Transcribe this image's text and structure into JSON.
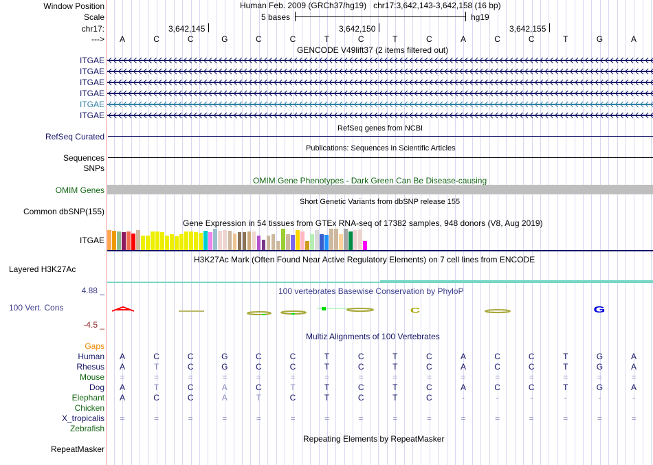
{
  "header": {
    "window_position_label": "Window Position",
    "window_position_text": "Human Feb. 2009 (GRCh37/hg19)   chr17:3,642,143-3,642,158 (16 bp)",
    "scale_label": "Scale",
    "scale_text": "5 bases",
    "scale_assembly": "hg19",
    "chrom_label": "chr17:",
    "strand_label": "--->",
    "coord_ticks": [
      "3,642,145",
      "3,642,150",
      "3,642,155"
    ],
    "bases": [
      "A",
      "C",
      "C",
      "G",
      "C",
      "C",
      "T",
      "C",
      "T",
      "C",
      "A",
      "C",
      "C",
      "T",
      "G",
      "A"
    ]
  },
  "tracks": {
    "gencode": {
      "title": "GENCODE V49lift37 (2 items filtered out)",
      "items": [
        {
          "label": "ITGAE",
          "color": "#141466"
        },
        {
          "label": "ITGAE",
          "color": "#141466"
        },
        {
          "label": "ITGAE",
          "color": "#141466"
        },
        {
          "label": "ITGAE",
          "color": "#141466"
        },
        {
          "label": "ITGAE",
          "color": "#2f7fa6"
        },
        {
          "label": "ITGAE",
          "color": "#141466"
        }
      ],
      "strand": "minus"
    },
    "refseq": {
      "label": "RefSeq Curated",
      "title": "RefSeq genes from NCBI"
    },
    "publications": {
      "label": "Sequences",
      "title": "Publications: Sequences in Scientific Articles"
    },
    "snps_label": "SNPs",
    "omim": {
      "label": "OMIM Genes",
      "title": "OMIM Gene Phenotypes - Dark Green Can Be Disease-causing"
    },
    "dbsnp": {
      "label": "Common dbSNP(155)",
      "title": "Short Genetic Variants from dbSNP release 155"
    },
    "gtex": {
      "label": "ITGAE",
      "title": "Gene Expression in 54 tissues from GTEx RNA-seq of 17382 samples, 948 donors (V8, Aug 2019)",
      "bars": [
        {
          "color": "#ffa54f",
          "value": 0.93
        },
        {
          "color": "#ee9a00",
          "value": 0.9
        },
        {
          "color": "#8fbc8f",
          "value": 0.87
        },
        {
          "color": "#8b1c62",
          "value": 0.83
        },
        {
          "color": "#ee6a50",
          "value": 0.87
        },
        {
          "color": "#ff0000",
          "value": 0.78
        },
        {
          "color": "#cdb79e",
          "value": 0.93
        },
        {
          "color": "#eeee00",
          "value": 0.68
        },
        {
          "color": "#eeee00",
          "value": 0.68
        },
        {
          "color": "#eeee00",
          "value": 0.88
        },
        {
          "color": "#eeee00",
          "value": 0.86
        },
        {
          "color": "#eeee00",
          "value": 0.83
        },
        {
          "color": "#eeee00",
          "value": 0.68
        },
        {
          "color": "#eeee00",
          "value": 0.75
        },
        {
          "color": "#eeee00",
          "value": 0.64
        },
        {
          "color": "#eeee00",
          "value": 0.75
        },
        {
          "color": "#eeee00",
          "value": 0.86
        },
        {
          "color": "#eeee00",
          "value": 0.86
        },
        {
          "color": "#eeee00",
          "value": 0.83
        },
        {
          "color": "#eeee00",
          "value": 0.8
        },
        {
          "color": "#00cdcd",
          "value": 0.9
        },
        {
          "color": "#ee82ee",
          "value": 0.83
        },
        {
          "color": "#9ac0cd",
          "value": 1.0
        },
        {
          "color": "#eed5d2",
          "value": 0.9
        },
        {
          "color": "#eed5d2",
          "value": 0.93
        },
        {
          "color": "#cdb79e",
          "value": 0.9
        },
        {
          "color": "#eec591",
          "value": 0.78
        },
        {
          "color": "#8b7355",
          "value": 0.83
        },
        {
          "color": "#8b7355",
          "value": 0.83
        },
        {
          "color": "#cdaa7d",
          "value": 0.86
        },
        {
          "color": "#eed5d2",
          "value": 0.87
        },
        {
          "color": "#b452cd",
          "value": 0.68
        },
        {
          "color": "#7a378b",
          "value": 0.47
        },
        {
          "color": "#cdb79e",
          "value": 0.67
        },
        {
          "color": "#cdb79e",
          "value": 0.73
        },
        {
          "color": "#cdb79e",
          "value": 0.43
        },
        {
          "color": "#9acd32",
          "value": 1.0
        },
        {
          "color": "#cdb79e",
          "value": 0.75
        },
        {
          "color": "#7b68ee",
          "value": 0.7
        },
        {
          "color": "#ffd700",
          "value": 0.93
        },
        {
          "color": "#ffb6c1",
          "value": 0.88
        },
        {
          "color": "#cd9b1d",
          "value": 0.43
        },
        {
          "color": "#b4eeb4",
          "value": 0.75
        },
        {
          "color": "#d9d9d9",
          "value": 0.93
        },
        {
          "color": "#3a5fcd",
          "value": 0.75
        },
        {
          "color": "#1e90ff",
          "value": 0.72
        },
        {
          "color": "#cdb79e",
          "value": 1.0
        },
        {
          "color": "#cdb79e",
          "value": 1.0
        },
        {
          "color": "#ffd39b",
          "value": 0.75
        },
        {
          "color": "#a6a6a6",
          "value": 1.0
        },
        {
          "color": "#008b45",
          "value": 0.86
        },
        {
          "color": "#eed5d2",
          "value": 0.95
        },
        {
          "color": "#eed5d2",
          "value": 0.97
        },
        {
          "color": "#ff00ff",
          "value": 0.43
        }
      ]
    },
    "h3k27ac": {
      "label": "Layered H3K27Ac",
      "title": "H3K27Ac Mark (Often Found Near Active Regulatory Elements) on 7 cell lines from ENCODE"
    },
    "phylop": {
      "label": "100 Vert. Cons",
      "title": "100 vertebrates Basewise Conservation by PhyloP",
      "max": "4.88 _",
      "min": "-4.5 _"
    },
    "multiz": {
      "title": "Multiz Alignments of 100 Vertebrates",
      "gaps_label": "Gaps",
      "species": [
        {
          "name": "Human",
          "color": "#141466",
          "row": [
            "A",
            "C",
            "C",
            "G",
            "C",
            "C",
            "T",
            "C",
            "T",
            "C",
            "A",
            "C",
            "C",
            "T",
            "G",
            "A"
          ]
        },
        {
          "name": "Rhesus",
          "color": "#141466",
          "row": [
            "A",
            "T",
            "C",
            "G",
            "C",
            "C",
            "T",
            "C",
            "T",
            "C",
            "A",
            "C",
            "C",
            "T",
            "G",
            "A"
          ]
        },
        {
          "name": "Mouse",
          "color": "#146614",
          "row": [
            "=",
            "=",
            "=",
            "=",
            "=",
            "=",
            "=",
            "=",
            "=",
            "=",
            "=",
            "=",
            "=",
            "=",
            "=",
            "="
          ]
        },
        {
          "name": "Dog",
          "color": "#141466",
          "row": [
            "A",
            "T",
            "C",
            "A",
            "C",
            "T",
            "T",
            "C",
            "T",
            "C",
            "A",
            "C",
            "C",
            "T",
            "G",
            "A"
          ]
        },
        {
          "name": "Elephant",
          "color": "#146614",
          "row": [
            "A",
            "C",
            "C",
            "A",
            "T",
            "C",
            "T",
            "C",
            "T",
            "C",
            "-",
            "-",
            "-",
            "-",
            "-",
            "-"
          ]
        },
        {
          "name": "Chicken",
          "color": "#146614",
          "row": []
        },
        {
          "name": "X_tropicalis",
          "color": "#141466",
          "row": [
            "=",
            "=",
            "=",
            "=",
            "=",
            "=",
            "=",
            "=",
            "=",
            "=",
            "=",
            "=",
            "=",
            "=",
            "=",
            "="
          ]
        },
        {
          "name": "Zebrafish",
          "color": "#146614",
          "row": []
        }
      ]
    },
    "repeatmasker": {
      "label": "RepeatMasker",
      "title": "Repeating Elements by RepeatMasker"
    }
  }
}
